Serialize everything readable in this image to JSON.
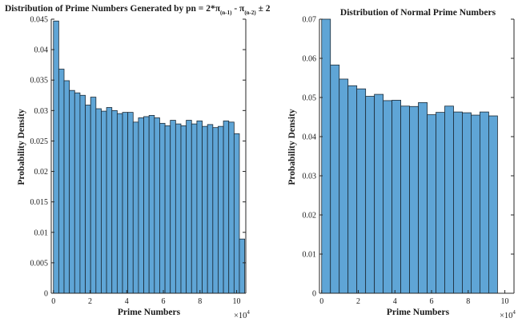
{
  "chart_data": [
    {
      "type": "bar",
      "title": "Distribution of Prime Numbers Generated by pn = 2*π",
      "title_sub1": "(n-1)",
      "title_mid": " - π",
      "title_sub2": "(n-2)",
      "title_tail": " ± 2",
      "xlabel": "Prime Numbers",
      "ylabel": "Probability Density",
      "x_multiplier": "×10",
      "x_multiplier_exp": "4",
      "xlim": [
        -1200,
        105000
      ],
      "ylim": [
        0,
        0.045
      ],
      "x_ticks": [
        0,
        20000,
        40000,
        60000,
        80000,
        100000
      ],
      "x_tick_labels": [
        "0",
        "2",
        "4",
        "6",
        "8",
        "10"
      ],
      "y_ticks": [
        0,
        0.005,
        0.01,
        0.015,
        0.02,
        0.025,
        0.03,
        0.035,
        0.04,
        0.045
      ],
      "y_tick_labels": [
        "0",
        "0.005",
        "0.01",
        "0.015",
        "0.02",
        "0.025",
        "0.03",
        "0.035",
        "0.04",
        "0.045"
      ],
      "bin_start": 0,
      "bin_width": 2900,
      "values": [
        0.0447,
        0.0368,
        0.0349,
        0.0333,
        0.0329,
        0.0325,
        0.0309,
        0.0322,
        0.0303,
        0.0299,
        0.0305,
        0.03,
        0.0295,
        0.0297,
        0.0297,
        0.0281,
        0.0288,
        0.029,
        0.0292,
        0.0288,
        0.0279,
        0.0275,
        0.0284,
        0.0278,
        0.0275,
        0.0284,
        0.0278,
        0.0283,
        0.0274,
        0.0277,
        0.0272,
        0.0274,
        0.0283,
        0.0281,
        0.0262,
        0.0089
      ],
      "grid": false
    },
    {
      "type": "bar",
      "title": "Distribution of Normal Prime Numbers",
      "xlabel": "Prime Numbers",
      "ylabel": "Probability Density",
      "x_multiplier": "×10",
      "x_multiplier_exp": "4",
      "xlim": [
        -1200,
        105000
      ],
      "ylim": [
        0,
        0.07
      ],
      "x_ticks": [
        0,
        20000,
        40000,
        60000,
        80000,
        100000
      ],
      "x_tick_labels": [
        "0",
        "2",
        "4",
        "6",
        "8",
        "10"
      ],
      "y_ticks": [
        0,
        0.01,
        0.02,
        0.03,
        0.04,
        0.05,
        0.06,
        0.07
      ],
      "y_tick_labels": [
        "0",
        "0.01",
        "0.02",
        "0.03",
        "0.04",
        "0.05",
        "0.06",
        "0.07"
      ],
      "bin_start": 0,
      "bin_width": 4800,
      "values": [
        0.07,
        0.0583,
        0.0547,
        0.053,
        0.0522,
        0.0503,
        0.0508,
        0.0492,
        0.0493,
        0.0478,
        0.0477,
        0.0487,
        0.0456,
        0.0462,
        0.0478,
        0.0463,
        0.0461,
        0.0455,
        0.0463,
        0.0453
      ],
      "grid": false
    }
  ]
}
